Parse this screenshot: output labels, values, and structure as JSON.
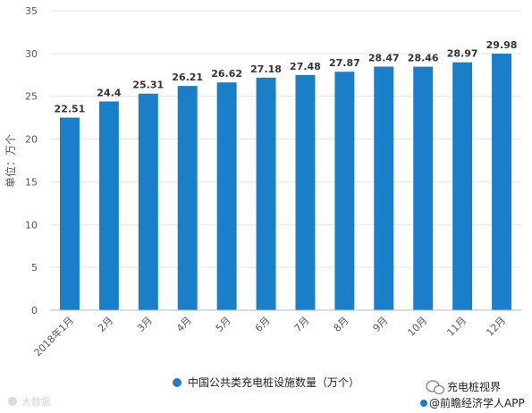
{
  "chart_data": {
    "type": "bar",
    "categories": [
      "2018年1月",
      "2月",
      "3月",
      "4月",
      "5月",
      "6月",
      "7月",
      "8月",
      "9月",
      "10月",
      "11月",
      "12月"
    ],
    "series": [
      {
        "name": "中国公共类充电桩设施数量（万个）",
        "values": [
          22.51,
          24.4,
          25.31,
          26.21,
          26.62,
          27.18,
          27.48,
          27.87,
          28.47,
          28.46,
          28.97,
          29.98
        ]
      }
    ],
    "data_labels": [
      "22.51",
      "24.4",
      "25.31",
      "26.21",
      "26.62",
      "27.18",
      "27.48",
      "27.87",
      "28.47",
      "28.46",
      "28.97",
      "29.98"
    ],
    "ylabel": "单位：万个",
    "ylim": [
      0,
      35
    ],
    "yticks": [
      0,
      5,
      10,
      15,
      20,
      25,
      30,
      35
    ],
    "ytick_labels": [
      "0",
      "5",
      "10",
      "15",
      "20",
      "25",
      "30",
      "35"
    ],
    "grid": true,
    "legend_position": "bottom",
    "bar_color": "#1a7fc9"
  },
  "footer": {
    "wechat_account": "充电桩视界",
    "source": "@前瞻经济学人APP",
    "watermark": "大数据"
  },
  "colors": {
    "bar": "#1a7fc9",
    "grid": "#e3e3e3",
    "axis": "#bbbbbb"
  },
  "icons": {
    "legend_marker": "circle",
    "wechat": "wechat-icon"
  }
}
